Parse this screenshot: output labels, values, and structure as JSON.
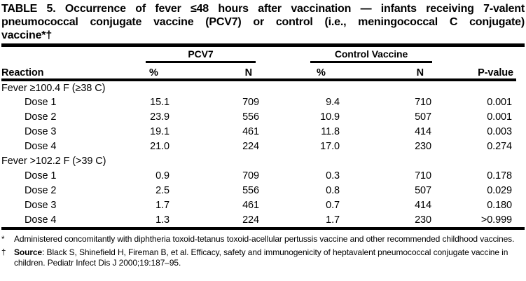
{
  "page": {
    "background": "#ffffff",
    "text_color": "#000000"
  },
  "title": {
    "lines": [
      "TABLE 5. Occurrence of fever ≤48 hours after vaccination — infants receiving 7-valent",
      "pneumococcal conjugate vaccine (PCV7) or control (i.e., meningococcal C conjugate)",
      "vaccine*†"
    ]
  },
  "table": {
    "groups": [
      {
        "label": "PCV7"
      },
      {
        "label": "Control Vaccine"
      }
    ],
    "columns": [
      "Reaction",
      "%",
      "N",
      "%",
      "N",
      "P-value"
    ],
    "sections": [
      {
        "header": "Fever ≥100.4 F (≥38 C)",
        "rows": [
          [
            "Dose 1",
            "15.1",
            "709",
            "9.4",
            "710",
            "0.001"
          ],
          [
            "Dose 2",
            "23.9",
            "556",
            "10.9",
            "507",
            "0.001"
          ],
          [
            "Dose 3",
            "19.1",
            "461",
            "11.8",
            "414",
            "0.003"
          ],
          [
            "Dose 4",
            "21.0",
            "224",
            "17.0",
            "230",
            "0.274"
          ]
        ]
      },
      {
        "header": "Fever >102.2 F (>39 C)",
        "rows": [
          [
            "Dose 1",
            "0.9",
            "709",
            "0.3",
            "710",
            "0.178"
          ],
          [
            "Dose 2",
            "2.5",
            "556",
            "0.8",
            "507",
            "0.029"
          ],
          [
            "Dose 3",
            "1.7",
            "461",
            "0.7",
            "414",
            "0.180"
          ],
          [
            "Dose 4",
            "1.3",
            "224",
            "1.7",
            "230",
            ">0.999"
          ]
        ]
      }
    ]
  },
  "footnotes": [
    {
      "marker": "*",
      "bold_prefix": "",
      "text": "Administered concomitantly with diphtheria toxoid-tetanus toxoid-acellular pertussis vaccine and other recommended childhood vaccines."
    },
    {
      "marker": "†",
      "bold_prefix": "Source",
      "text": ": Black S, Shinefield H, Fireman B, et al. Efficacy, safety and immunogenicity of heptavalent pneumococcal conjugate vaccine in children. Pediatr Infect Dis J 2000;19:187–95."
    }
  ]
}
